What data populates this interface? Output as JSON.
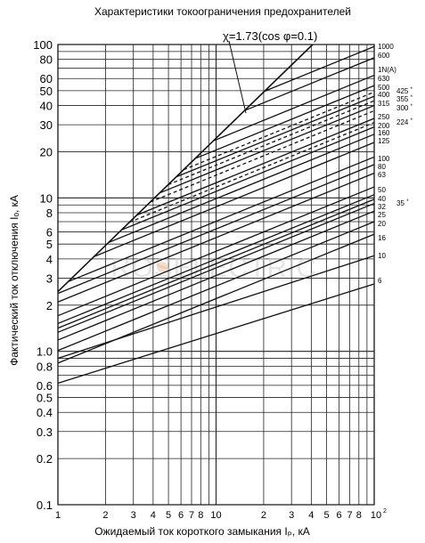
{
  "chart_data": {
    "type": "line",
    "title": "Характеристики токоограничения предохранителей",
    "xlabel": "Ожидаемый ток короткого замыкания Iₚ, кА",
    "ylabel": "Фактический ток отключения Iₒ, кА",
    "xscale": "log",
    "yscale": "log",
    "xlim": [
      1,
      100
    ],
    "ylim": [
      0.1,
      100
    ],
    "grid": true,
    "x_ticks": [
      "1",
      "2",
      "3",
      "4",
      "5",
      "6",
      "7",
      "8",
      "10",
      "2",
      "3",
      "4",
      "5",
      "6",
      "7",
      "8",
      "10²"
    ],
    "y_ticks": [
      "0.1",
      "0.2",
      "0.3",
      "0.4",
      "0.5",
      "0.6",
      "0.8",
      "1.0",
      "2",
      "3",
      "4",
      "5",
      "6",
      "8",
      "10",
      "20",
      "30",
      "40",
      "50",
      "60",
      "80",
      "100"
    ],
    "envelope_label": "χ=1.73(cos φ=0.1)",
    "envelope": {
      "x": [
        1,
        10,
        100
      ],
      "y": [
        2.45,
        24.5,
        245
      ]
    },
    "unit_label": "1N(A)",
    "series": [
      {
        "name": "1000",
        "value_at_100kA": 97,
        "starred": false,
        "dashed": false
      },
      {
        "name": "600",
        "value_at_100kA": 82,
        "starred": false,
        "dashed": false
      },
      {
        "name": "630",
        "value_at_100kA": 63,
        "starred": false,
        "dashed": false
      },
      {
        "name": "500",
        "value_at_100kA": 54,
        "starred": false,
        "dashed": false
      },
      {
        "name": "425*",
        "value_at_100kA": 49,
        "starred": true,
        "dashed": true
      },
      {
        "name": "400",
        "value_at_100kA": 46,
        "starred": false,
        "dashed": false
      },
      {
        "name": "355*",
        "value_at_100kA": 43,
        "starred": true,
        "dashed": true
      },
      {
        "name": "315",
        "value_at_100kA": 40,
        "starred": false,
        "dashed": false
      },
      {
        "name": "300*",
        "value_at_100kA": 37,
        "starred": true,
        "dashed": true
      },
      {
        "name": "250",
        "value_at_100kA": 33,
        "starred": false,
        "dashed": false
      },
      {
        "name": "224*",
        "value_at_100kA": 31,
        "starred": true,
        "dashed": true
      },
      {
        "name": "200",
        "value_at_100kA": 29,
        "starred": false,
        "dashed": false
      },
      {
        "name": "160",
        "value_at_100kA": 26,
        "starred": false,
        "dashed": false
      },
      {
        "name": "125",
        "value_at_100kA": 23,
        "starred": false,
        "dashed": false
      },
      {
        "name": "100",
        "value_at_100kA": 18.5,
        "starred": false,
        "dashed": false
      },
      {
        "name": "80",
        "value_at_100kA": 16.5,
        "starred": false,
        "dashed": false
      },
      {
        "name": "63",
        "value_at_100kA": 14.5,
        "starred": false,
        "dashed": false
      },
      {
        "name": "50",
        "value_at_100kA": 11.8,
        "starred": false,
        "dashed": false
      },
      {
        "name": "40",
        "value_at_100kA": 10.5,
        "starred": false,
        "dashed": false
      },
      {
        "name": "35*",
        "value_at_100kA": 9.8,
        "starred": true,
        "dashed": false
      },
      {
        "name": "32",
        "value_at_100kA": 9.2,
        "starred": false,
        "dashed": false
      },
      {
        "name": "25",
        "value_at_100kA": 8.2,
        "starred": false,
        "dashed": false
      },
      {
        "name": "20",
        "value_at_100kA": 7.0,
        "starred": false,
        "dashed": false
      },
      {
        "name": "16",
        "value_at_100kA": 5.8,
        "starred": false,
        "dashed": false
      },
      {
        "name": "10",
        "value_at_100kA": 4.2,
        "starred": false,
        "dashed": false
      },
      {
        "name": "6",
        "value_at_100kA": 2.75,
        "starred": false,
        "dashed": false
      }
    ],
    "watermark": "ROSELECTRIC"
  }
}
